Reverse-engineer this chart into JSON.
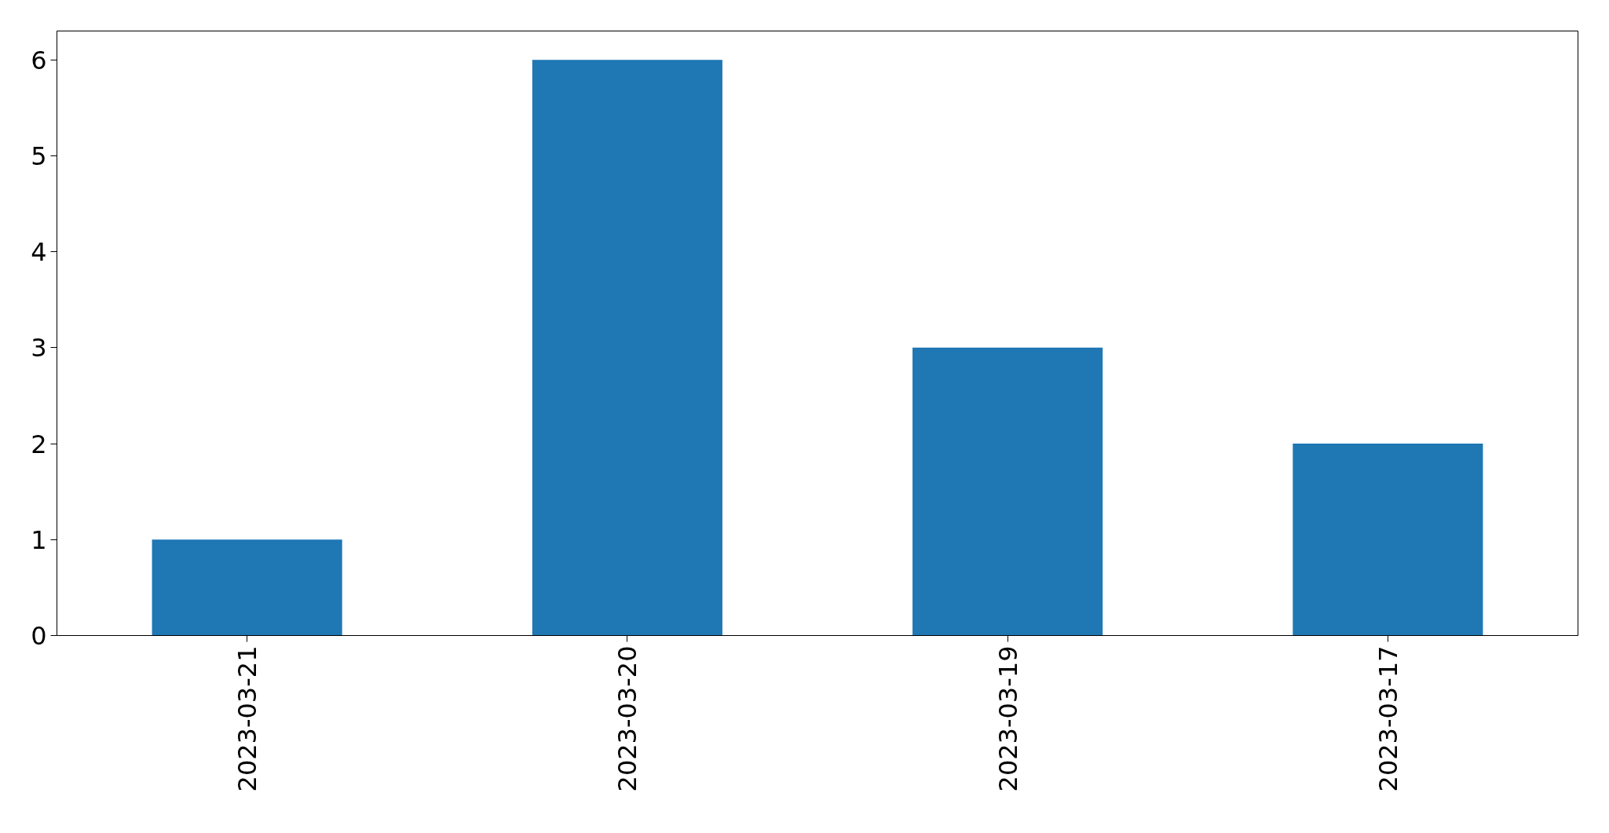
{
  "chart_data": {
    "type": "bar",
    "categories": [
      "2023-03-21",
      "2023-03-20",
      "2023-03-19",
      "2023-03-17"
    ],
    "values": [
      1,
      6,
      3,
      2
    ],
    "color": "#1f77b4",
    "ylim": [
      0,
      6.3
    ],
    "yticks": [
      0,
      1,
      2,
      3,
      4,
      5,
      6
    ],
    "grid": false
  }
}
